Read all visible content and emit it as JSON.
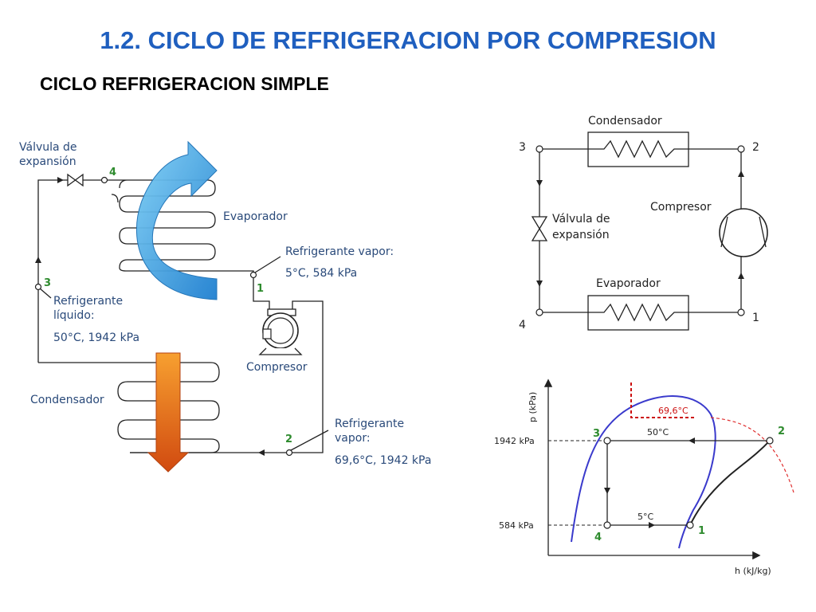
{
  "title": "1.2. CICLO DE REFRIGERACION POR COMPRESION",
  "subtitle": "CICLO REFRIGERACION SIMPLE",
  "left_diagram": {
    "valve_label_1": "Válvula de",
    "valve_label_2": "expansión",
    "evaporator": "Evaporador",
    "compressor": "Compresor",
    "condenser": "Condensador",
    "vapor_in_1": "Refrigerante vapor:",
    "vapor_in_2": "5°C, 584 kPa",
    "liquid_1": "Refrigerante",
    "liquid_2": "líquido:",
    "liquid_3": "50°C, 1942 kPa",
    "vapor_out_1": "Refrigerante",
    "vapor_out_2": "vapor:",
    "vapor_out_3": "69,6°C, 1942 kPa",
    "points": [
      "1",
      "2",
      "3",
      "4"
    ]
  },
  "schematic": {
    "condenser": "Condensador",
    "compressor": "Compresor",
    "valve_1": "Válvula de",
    "valve_2": "expansión",
    "evaporator": "Evaporador",
    "points": [
      "1",
      "2",
      "3",
      "4"
    ]
  },
  "ph_diagram": {
    "y_axis": "p (kPa)",
    "x_axis": "h (kJ/kg)",
    "p_high": "1942 kPa",
    "p_low": "584 kPa",
    "t_cond": "50°C",
    "t_evap": "5°C",
    "t_discharge": "69,6°C",
    "points": [
      "1",
      "2",
      "3",
      "4"
    ]
  },
  "colors": {
    "title": "#1f5fbf",
    "evaporator_arrow": "#3aa8e6",
    "condenser_arrow": "#e8761a",
    "saturation_dome": "#3a3acc",
    "discharge_marker": "#cc1111",
    "point_number": "#2e8b2e"
  }
}
